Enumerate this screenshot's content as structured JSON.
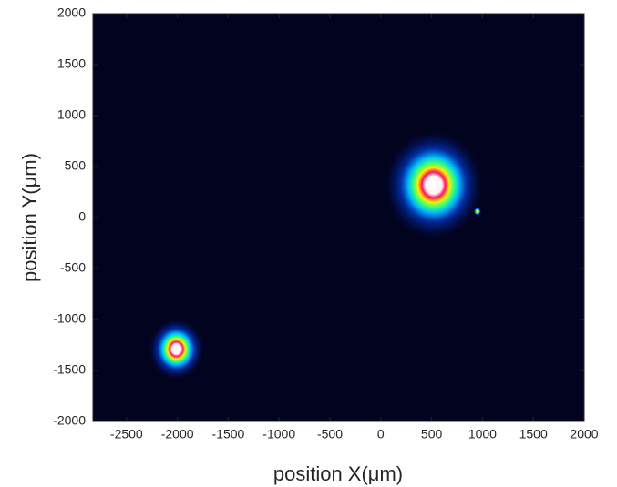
{
  "chart_data": {
    "type": "heatmap",
    "x_label": "position X(μm)",
    "y_label": "position Y(μm)",
    "xlim": [
      -2830,
      2000
    ],
    "ylim": [
      -2000,
      2000
    ],
    "xticks": [
      -2500,
      -2000,
      -1500,
      -1000,
      -500,
      0,
      500,
      1000,
      1500,
      2000
    ],
    "yticks": [
      -2000,
      -1500,
      -1000,
      -500,
      0,
      500,
      1000,
      1500,
      2000
    ],
    "background": "#02031f",
    "blobs": [
      {
        "x": 520,
        "y": 320,
        "size": 480
      },
      {
        "x": -2010,
        "y": -1290,
        "size": 270
      },
      {
        "x": 950,
        "y": 60,
        "size": 40
      }
    ]
  }
}
